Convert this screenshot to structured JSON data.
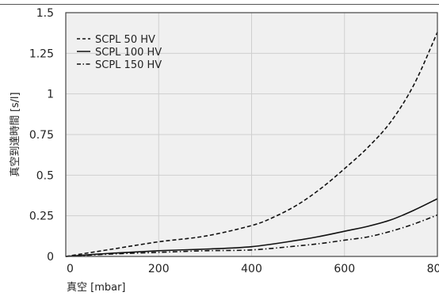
{
  "chart_data": {
    "type": "line",
    "xlabel": "真空 [mbar]",
    "ylabel": "真空到達時間 [s/l]",
    "xlim": [
      0,
      800
    ],
    "ylim": [
      0,
      1.5
    ],
    "x_ticks": [
      "0",
      "200",
      "400",
      "600",
      "800"
    ],
    "y_ticks": [
      "0",
      "0.25",
      "0.5",
      "0.75",
      "1",
      "1.25",
      "1.5"
    ],
    "grid": true,
    "legend_position": "top-left",
    "series": [
      {
        "name": "SCPL 50 HV",
        "style": "dashed",
        "color": "#111111",
        "x": [
          0,
          100,
          200,
          300,
          400,
          450,
          500,
          550,
          600,
          650,
          700,
          750,
          800
        ],
        "y": [
          0,
          0.045,
          0.09,
          0.125,
          0.19,
          0.245,
          0.32,
          0.42,
          0.54,
          0.67,
          0.83,
          1.06,
          1.38
        ]
      },
      {
        "name": "SCPL 100 HV",
        "style": "solid",
        "color": "#111111",
        "x": [
          0,
          100,
          200,
          300,
          400,
          500,
          550,
          600,
          650,
          700,
          750,
          800
        ],
        "y": [
          0,
          0.02,
          0.035,
          0.045,
          0.06,
          0.1,
          0.125,
          0.155,
          0.185,
          0.225,
          0.285,
          0.355
        ]
      },
      {
        "name": "SCPL 150 HV",
        "style": "dashdot",
        "color": "#111111",
        "x": [
          0,
          100,
          200,
          300,
          400,
          500,
          550,
          600,
          650,
          700,
          750,
          800
        ],
        "y": [
          0,
          0.015,
          0.025,
          0.035,
          0.04,
          0.065,
          0.08,
          0.1,
          0.12,
          0.155,
          0.2,
          0.255
        ]
      }
    ]
  }
}
